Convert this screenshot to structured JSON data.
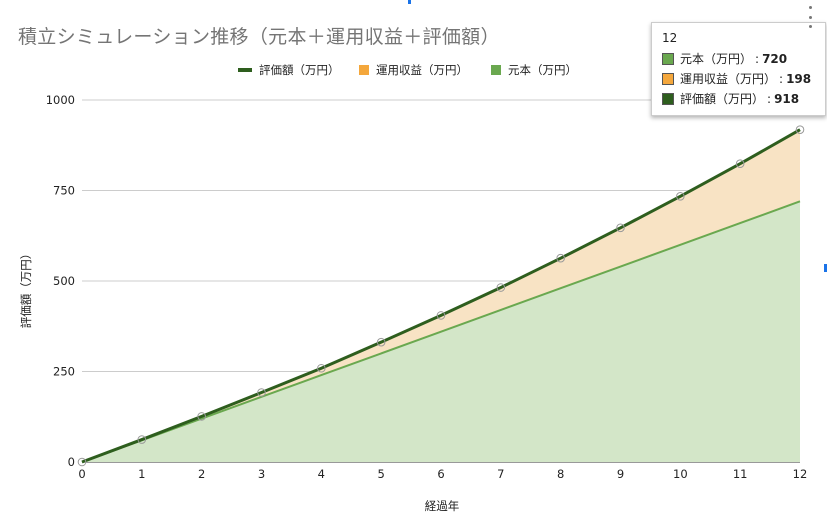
{
  "chart": {
    "title": "積立シミュレーション推移（元本＋運用収益＋評価額）",
    "legend": [
      {
        "label": "評価額（万円）",
        "color": "#2e5e1e",
        "kind": "line"
      },
      {
        "label": "運用収益（万円）",
        "color": "#f4a73c",
        "kind": "box"
      },
      {
        "label": "元本（万円）",
        "color": "#6aa84f",
        "kind": "box"
      }
    ],
    "xlabel": "経過年",
    "ylabel": "評価額（万円）",
    "menu_icon": "more-vert-icon"
  },
  "tooltip": {
    "title": "12",
    "rows": [
      {
        "label": "元本（万円）",
        "sep": ":",
        "value": "720",
        "color": "#6aa84f"
      },
      {
        "label": "運用収益（万円）",
        "sep": ":",
        "value": "198",
        "color": "#f4a73c"
      },
      {
        "label": "評価額（万円）",
        "sep": ":",
        "value": "918",
        "color": "#2e5e1e"
      }
    ]
  },
  "chart_data": {
    "type": "area",
    "title": "積立シミュレーション推移（元本＋運用収益＋評価額）",
    "xlabel": "経過年",
    "ylabel": "評価額（万円）",
    "x": [
      0,
      1,
      2,
      3,
      4,
      5,
      6,
      7,
      8,
      9,
      10,
      11,
      12
    ],
    "x_ticks": [
      "0",
      "1",
      "2",
      "3",
      "4",
      "5",
      "6",
      "7",
      "8",
      "9",
      "10",
      "11",
      "12"
    ],
    "y_ticks": [
      "0",
      "250",
      "500",
      "750",
      "1000"
    ],
    "y_tick_values": [
      0,
      250,
      500,
      750,
      1000
    ],
    "ylim": [
      0,
      1000
    ],
    "xlim": [
      0,
      12
    ],
    "grid": true,
    "legend_position": "top",
    "series": [
      {
        "name": "元本（万円）",
        "values": [
          0,
          60,
          120,
          180,
          240,
          300,
          360,
          420,
          480,
          540,
          600,
          660,
          720
        ],
        "color": "#6aa84f",
        "fill": "#d3e6c8"
      },
      {
        "name": "運用収益（万円）",
        "values": [
          0,
          2,
          6,
          12,
          19,
          31,
          45,
          62,
          83,
          107,
          134,
          164,
          198
        ],
        "color": "#f4a73c",
        "fill": "#f8e3c4"
      },
      {
        "name": "評価額（万円）",
        "values": [
          0,
          62,
          126,
          192,
          259,
          331,
          405,
          482,
          563,
          647,
          734,
          824,
          918
        ],
        "color": "#2e5e1e"
      }
    ]
  }
}
